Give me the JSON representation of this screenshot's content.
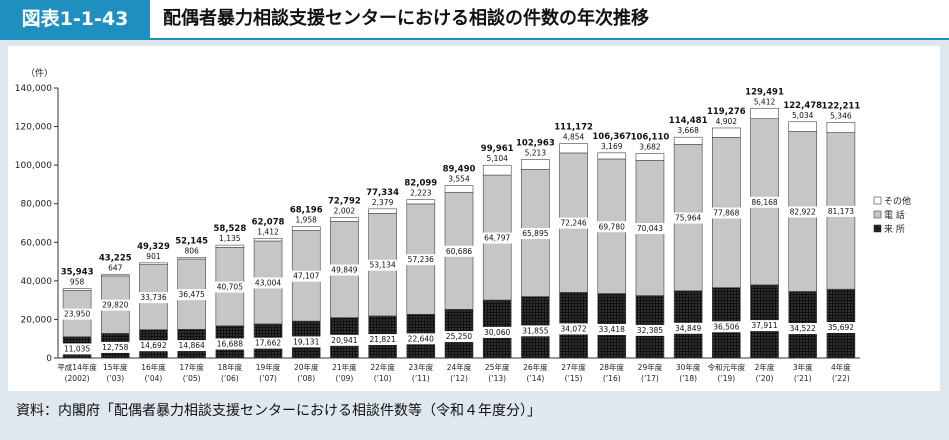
{
  "figure": {
    "number": "図表1-1-43",
    "title": "配偶者暴力相談支援センターにおける相談の件数の年次推移",
    "source": "資料：内閣府「配偶者暴力相談支援センターにおける相談件数等（令和４年度分）」"
  },
  "colors": {
    "accent": "#1f8fbf",
    "visit": "#111111",
    "phone": "#c6c6c6",
    "other": "#ffffff"
  },
  "chart_data": {
    "type": "bar",
    "stacked": true,
    "unit_label": "（件）",
    "ylim": [
      0,
      140000
    ],
    "yticks": [
      0,
      20000,
      40000,
      60000,
      80000,
      100000,
      120000,
      140000
    ],
    "ytick_labels": [
      "0",
      "20,000",
      "40,000",
      "60,000",
      "80,000",
      "100,000",
      "120,000",
      "140,000"
    ],
    "categories": [
      [
        "平成14年度",
        "(2002)"
      ],
      [
        "15年度",
        "(’03)"
      ],
      [
        "16年度",
        "(’04)"
      ],
      [
        "17年度",
        "(’05)"
      ],
      [
        "18年度",
        "(’06)"
      ],
      [
        "19年度",
        "(’07)"
      ],
      [
        "20年度",
        "(’08)"
      ],
      [
        "21年度",
        "(’09)"
      ],
      [
        "22年度",
        "(’10)"
      ],
      [
        "23年度",
        "(’11)"
      ],
      [
        "24年度",
        "(’12)"
      ],
      [
        "25年度",
        "(’13)"
      ],
      [
        "26年度",
        "(’14)"
      ],
      [
        "27年度",
        "(’15)"
      ],
      [
        "28年度",
        "(’16)"
      ],
      [
        "29年度",
        "(’17)"
      ],
      [
        "30年度",
        "(’18)"
      ],
      [
        "令和元年度",
        "(’19)"
      ],
      [
        "2年度",
        "(’20)"
      ],
      [
        "3年度",
        "(’21)"
      ],
      [
        "4年度",
        "(’22)"
      ]
    ],
    "series": [
      {
        "name": "来 所",
        "key": "visit",
        "values": [
          11035,
          12758,
          14692,
          14864,
          16688,
          17662,
          19131,
          20941,
          21821,
          22640,
          25250,
          30060,
          31855,
          34072,
          33418,
          32385,
          34849,
          36506,
          37911,
          34522,
          35692
        ],
        "labels": [
          "11,035",
          "12,758",
          "14,692",
          "14,864",
          "16,688",
          "17,662",
          "19,131",
          "20,941",
          "21,821",
          "22,640",
          "25,250",
          "30,060",
          "31,855",
          "34,072",
          "33,418",
          "32,385",
          "34,849",
          "36,506",
          "37,911",
          "34,522",
          "35,692"
        ]
      },
      {
        "name": "電 話",
        "key": "phone",
        "values": [
          23950,
          29820,
          33736,
          36475,
          40705,
          43004,
          47107,
          49849,
          53134,
          57236,
          60686,
          64797,
          65895,
          72246,
          69780,
          70043,
          75964,
          77868,
          86168,
          82922,
          81173
        ],
        "labels": [
          "23,950",
          "29,820",
          "33,736",
          "36,475",
          "40,705",
          "43,004",
          "47,107",
          "49,849",
          "53,134",
          "57,236",
          "60,686",
          "64,797",
          "65,895",
          "72,246",
          "69,780",
          "70,043",
          "75,964",
          "77,868",
          "86,168",
          "82,922",
          "81,173"
        ]
      },
      {
        "name": "その他",
        "key": "other",
        "values": [
          958,
          647,
          901,
          806,
          1135,
          1412,
          1958,
          2002,
          2379,
          2223,
          3554,
          5104,
          5213,
          4854,
          3169,
          3682,
          3668,
          4902,
          5412,
          5034,
          5346
        ],
        "labels": [
          "958",
          "647",
          "901",
          "806",
          "1,135",
          "1,412",
          "1,958",
          "2,002",
          "2,379",
          "2,223",
          "3,554",
          "5,104",
          "5,213",
          "4,854",
          "3,169",
          "3,682",
          "3,668",
          "4,902",
          "5,412",
          "5,034",
          "5,346"
        ]
      }
    ],
    "totals": [
      35943,
      43225,
      49329,
      52145,
      58528,
      62078,
      68196,
      72792,
      77334,
      82099,
      89490,
      99961,
      102963,
      111172,
      106367,
      106110,
      114481,
      119276,
      129491,
      122478,
      122211
    ],
    "total_labels": [
      "35,943",
      "43,225",
      "49,329",
      "52,145",
      "58,528",
      "62,078",
      "68,196",
      "72,792",
      "77,334",
      "82,099",
      "89,490",
      "99,961",
      "102,963",
      "111,172",
      "106,367",
      "106,110",
      "114,481",
      "119,276",
      "129,491",
      "122,478",
      "122,211"
    ],
    "legend": {
      "position": "right",
      "items": [
        {
          "label": "その他",
          "key": "other"
        },
        {
          "label": "電 話",
          "key": "phone"
        },
        {
          "label": "来 所",
          "key": "visit"
        }
      ]
    }
  }
}
